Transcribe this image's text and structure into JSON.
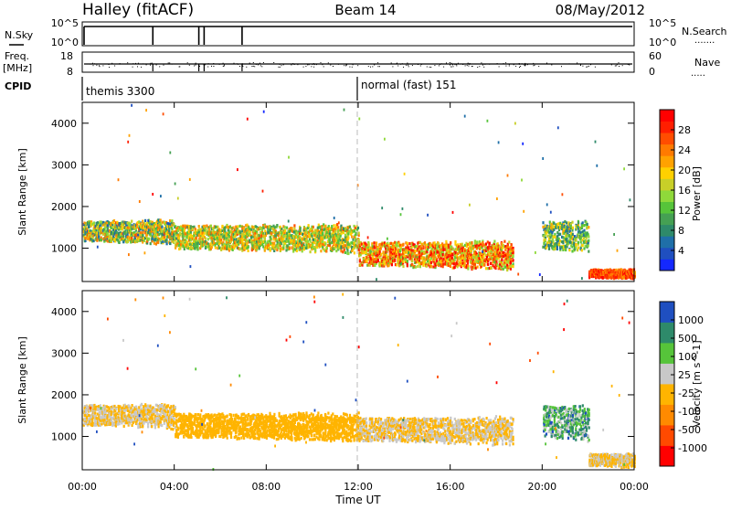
{
  "header": {
    "site": "Halley (fitACF)",
    "beam": "Beam 14",
    "date": "08/May/2012"
  },
  "status_panels": {
    "nsky": {
      "label": "N.Sky",
      "ticks": [
        "10^5",
        "10^0"
      ]
    },
    "nsearch": {
      "label": "N.Search",
      "ticks": [
        "10^5",
        "10^0"
      ]
    },
    "freq": {
      "label_top": "Freq.",
      "label_bottom": "[MHz]",
      "ticks": [
        "18",
        "8"
      ]
    },
    "nave": {
      "label": "Nave",
      "ticks": [
        "60",
        "0"
      ]
    },
    "cpid": {
      "label": "CPID",
      "modes": [
        {
          "name": "themis 3300",
          "start_hour": 0
        },
        {
          "name": "normal (fast) 151",
          "start_hour": 12
        }
      ]
    },
    "data_gaps_hours": [
      3.07,
      5.07,
      5.3,
      6.95
    ]
  },
  "chart_data": [
    {
      "type": "heatmap",
      "title": "",
      "xlabel": "",
      "ylabel": "Slant Range [km]",
      "x_range_hours": [
        0,
        24
      ],
      "ylim": [
        200,
        4500
      ],
      "yticks": [
        "1000",
        "2000",
        "3000",
        "4000"
      ],
      "colorbar": {
        "label": "Power [dB]",
        "ticks": [
          "28",
          "24",
          "20",
          "16",
          "12",
          "8",
          "4"
        ],
        "range": [
          0,
          30
        ],
        "colors": [
          "#1428ff",
          "#1f4fc0",
          "#1f6fa8",
          "#2e8a6a",
          "#45a053",
          "#56c43a",
          "#8fd93a",
          "#c8cf28",
          "#ffd000",
          "#ffa200",
          "#ff7a00",
          "#ff4d00",
          "#ff1e00",
          "#ff0000"
        ]
      },
      "bands": [
        {
          "range_km": [
            1100,
            1700
          ],
          "hours": [
            0,
            4
          ],
          "power_db": [
            4,
            24
          ]
        },
        {
          "range_km": [
            900,
            1600
          ],
          "hours": [
            4,
            12
          ],
          "power_db": [
            8,
            24
          ]
        },
        {
          "range_km": [
            500,
            1200
          ],
          "hours": [
            12,
            18.7
          ],
          "power_db": [
            12,
            30
          ]
        },
        {
          "range_km": [
            900,
            1700
          ],
          "hours": [
            20,
            22
          ],
          "power_db": [
            4,
            20
          ]
        },
        {
          "range_km": [
            250,
            500
          ],
          "hours": [
            22,
            24
          ],
          "power_db": [
            20,
            30
          ]
        }
      ]
    },
    {
      "type": "heatmap",
      "title": "",
      "xlabel": "Time UT",
      "ylabel": "Slant Range [km]",
      "x_range_hours": [
        0,
        24
      ],
      "xticks": [
        "00:00",
        "04:00",
        "08:00",
        "12:00",
        "16:00",
        "20:00",
        "00:00"
      ],
      "ylim": [
        200,
        4500
      ],
      "yticks": [
        "1000",
        "2000",
        "3000",
        "4000"
      ],
      "colorbar": {
        "label": "Velocity [m s^-1]",
        "ticks": [
          "1000",
          "500",
          "100",
          "25",
          "-25",
          "-100",
          "-500",
          "-1000"
        ],
        "range": [
          -1100,
          1100
        ],
        "colors": [
          "#ff0000",
          "#ff4a00",
          "#ff8a00",
          "#ffb400",
          "#c8c8c8",
          "#56c43a",
          "#2e8a6a",
          "#1f4fc0"
        ]
      },
      "bands": [
        {
          "range_km": [
            1200,
            1800
          ],
          "hours": [
            0,
            4
          ],
          "velocity_ms": [
            -200,
            200
          ]
        },
        {
          "range_km": [
            900,
            1600
          ],
          "hours": [
            4,
            12
          ],
          "velocity_ms": [
            -200,
            -40
          ]
        },
        {
          "range_km": [
            800,
            1500
          ],
          "hours": [
            12,
            18.7
          ],
          "velocity_ms": [
            -30,
            30
          ]
        },
        {
          "range_km": [
            900,
            1800
          ],
          "hours": [
            20,
            22
          ],
          "velocity_ms": [
            100,
            900
          ]
        },
        {
          "range_km": [
            250,
            600
          ],
          "hours": [
            22,
            24
          ],
          "velocity_ms": [
            -200,
            200
          ]
        }
      ]
    }
  ]
}
